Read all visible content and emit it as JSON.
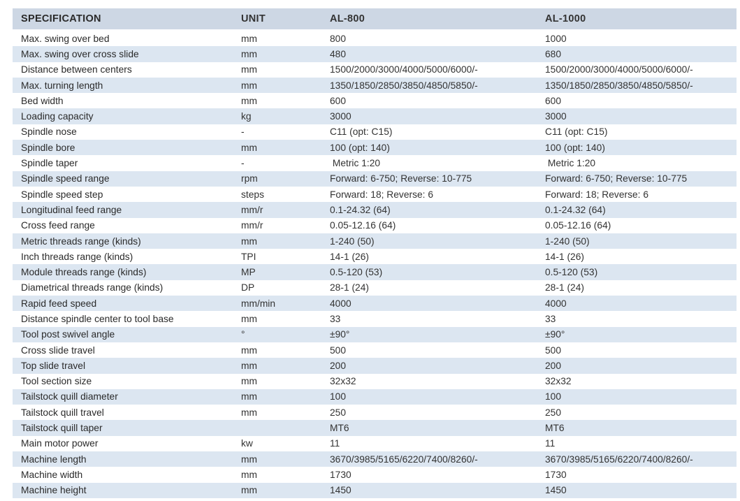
{
  "colors": {
    "header_bg": "#cdd7e4",
    "stripe_bg": "#dce6f1",
    "text": "#262626",
    "background": "#ffffff"
  },
  "table": {
    "columns": [
      {
        "key": "spec",
        "label": "SPECIFICATION"
      },
      {
        "key": "unit",
        "label": "UNIT"
      },
      {
        "key": "al800",
        "label": "AL-800"
      },
      {
        "key": "al1000",
        "label": "AL-1000"
      }
    ],
    "rows": [
      {
        "spec": "Max. swing over bed",
        "unit": "mm",
        "al800": "800",
        "al1000": "1000"
      },
      {
        "spec": "Max. swing over cross slide",
        "unit": "mm",
        "al800": "480",
        "al1000": "680"
      },
      {
        "spec": "Distance between centers",
        "unit": "mm",
        "al800": "1500/2000/3000/4000/5000/6000/-",
        "al1000": "1500/2000/3000/4000/5000/6000/-"
      },
      {
        "spec": "Max. turning length",
        "unit": "mm",
        "al800": "1350/1850/2850/3850/4850/5850/-",
        "al1000": "1350/1850/2850/3850/4850/5850/-"
      },
      {
        "spec": "Bed width",
        "unit": "mm",
        "al800": "600",
        "al1000": "600"
      },
      {
        "spec": "Loading capacity",
        "unit": "kg",
        "al800": "3000",
        "al1000": "3000"
      },
      {
        "spec": "Spindle nose",
        "unit": "-",
        "al800": "C11 (opt: C15)",
        "al1000": "C11 (opt: C15)"
      },
      {
        "spec": "Spindle bore",
        "unit": "mm",
        "al800": "100 (opt: 140)",
        "al1000": "100 (opt: 140)"
      },
      {
        "spec": "Spindle taper",
        "unit": "-",
        "al800": " Metric 1:20",
        "al1000": " Metric 1:20"
      },
      {
        "spec": "Spindle speed range",
        "unit": "rpm",
        "al800": "Forward: 6-750; Reverse: 10-775",
        "al1000": "Forward: 6-750; Reverse: 10-775"
      },
      {
        "spec": "Spindle speed step",
        "unit": "steps",
        "al800": "Forward: 18; Reverse: 6",
        "al1000": "Forward: 18; Reverse: 6"
      },
      {
        "spec": "Longitudinal feed range",
        "unit": "mm/r",
        "al800": "0.1-24.32 (64)",
        "al1000": "0.1-24.32 (64)"
      },
      {
        "spec": "Cross feed range",
        "unit": "mm/r",
        "al800": "0.05-12.16 (64)",
        "al1000": "0.05-12.16 (64)"
      },
      {
        "spec": "Metric threads range (kinds)",
        "unit": "mm",
        "al800": "1-240 (50)",
        "al1000": "1-240 (50)"
      },
      {
        "spec": "Inch threads range (kinds)",
        "unit": "TPI",
        "al800": "14-1 (26)",
        "al1000": "14-1 (26)"
      },
      {
        "spec": "Module threads range (kinds)",
        "unit": "MP",
        "al800": "0.5-120 (53)",
        "al1000": "0.5-120 (53)"
      },
      {
        "spec": "Diametrical threads range (kinds)",
        "unit": "DP",
        "al800": "28-1 (24)",
        "al1000": "28-1 (24)"
      },
      {
        "spec": "Rapid feed speed",
        "unit": "mm/min",
        "al800": "4000",
        "al1000": "4000"
      },
      {
        "spec": "Distance spindle center to tool base",
        "unit": "mm",
        "al800": "33",
        "al1000": "33"
      },
      {
        "spec": "Tool post swivel angle",
        "unit": "°",
        "al800": "±90°",
        "al1000": "±90°"
      },
      {
        "spec": "Cross slide travel",
        "unit": "mm",
        "al800": "500",
        "al1000": "500"
      },
      {
        "spec": "Top slide travel",
        "unit": "mm",
        "al800": "200",
        "al1000": "200"
      },
      {
        "spec": "Tool section size",
        "unit": "mm",
        "al800": "32x32",
        "al1000": "32x32"
      },
      {
        "spec": "Tailstock quill diameter",
        "unit": "mm",
        "al800": "100",
        "al1000": "100"
      },
      {
        "spec": "Tailstock quill travel",
        "unit": "mm",
        "al800": "250",
        "al1000": "250"
      },
      {
        "spec": "Tailstock quill taper",
        "unit": "",
        "al800": "MT6",
        "al1000": "MT6"
      },
      {
        "spec": "Main motor power",
        "unit": "kw",
        "al800": "11",
        "al1000": "11"
      },
      {
        "spec": "Machine length",
        "unit": "mm",
        "al800": "3670/3985/5165/6220/7400/8260/-",
        "al1000": "3670/3985/5165/6220/7400/8260/-"
      },
      {
        "spec": "Machine width",
        "unit": "mm",
        "al800": "1730",
        "al1000": "1730"
      },
      {
        "spec": "Machine height",
        "unit": "mm",
        "al800": "1450",
        "al1000": "1450"
      }
    ]
  }
}
